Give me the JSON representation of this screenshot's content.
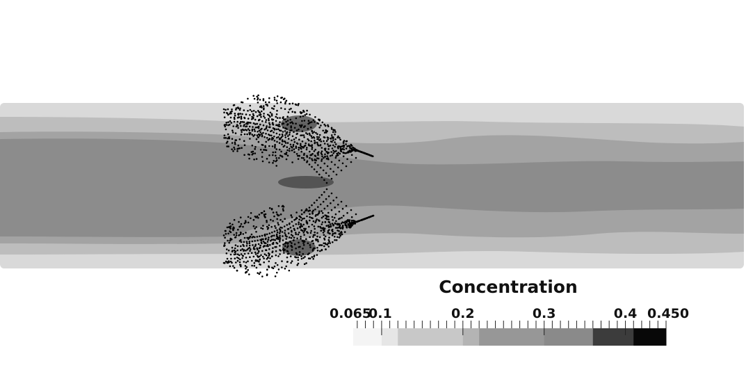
{
  "colorbar": {
    "title": "Concentration",
    "range": [
      0.065,
      0.45
    ],
    "tick_labels": [
      {
        "text": "0.065",
        "value": 0.065
      },
      {
        "text": "0.1",
        "value": 0.1
      },
      {
        "text": "0.2",
        "value": 0.2
      },
      {
        "text": "0.3",
        "value": 0.3
      },
      {
        "text": "0.4",
        "value": 0.4
      },
      {
        "text": "0.450",
        "value": 0.45
      }
    ],
    "color_bands": [
      {
        "from": 0.065,
        "to": 0.1,
        "color": "#f4f4f4"
      },
      {
        "from": 0.1,
        "to": 0.12,
        "color": "#e6e6e6"
      },
      {
        "from": 0.12,
        "to": 0.2,
        "color": "#c8c8c8"
      },
      {
        "from": 0.2,
        "to": 0.22,
        "color": "#b4b4b4"
      },
      {
        "from": 0.22,
        "to": 0.3,
        "color": "#979797"
      },
      {
        "from": 0.3,
        "to": 0.36,
        "color": "#8a8a8a"
      },
      {
        "from": 0.36,
        "to": 0.41,
        "color": "#3c3c3c"
      },
      {
        "from": 0.41,
        "to": 0.45,
        "color": "#080808"
      }
    ]
  },
  "field_colors": {
    "outer": "#d9d9d9",
    "ring": "#bdbdbd",
    "mid": "#a3a3a3",
    "core": "#8c8c8c",
    "particles": "#000000"
  }
}
